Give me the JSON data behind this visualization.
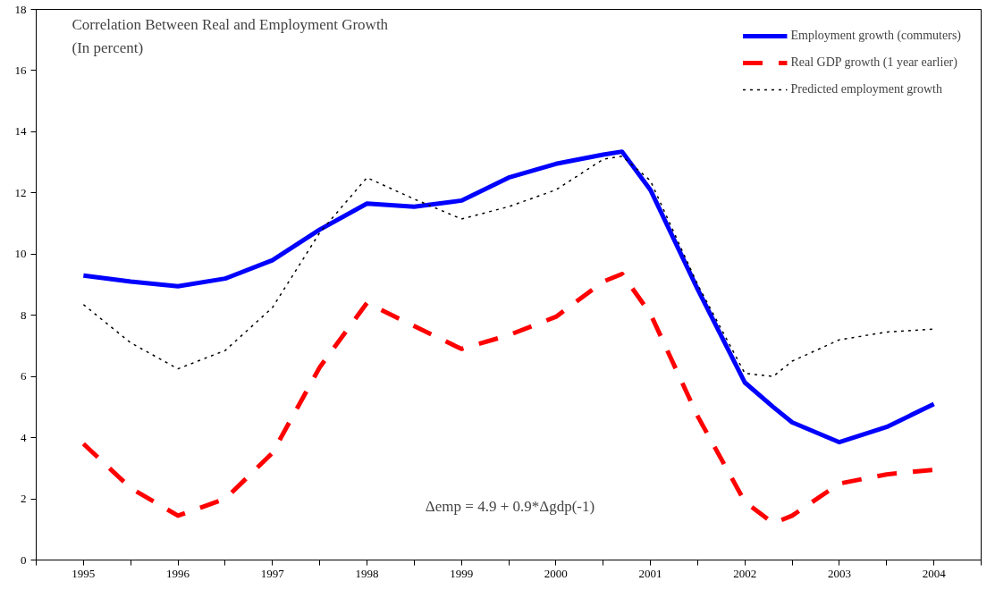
{
  "chart_data": {
    "type": "line",
    "title": "Correlation Between Real and Employment Growth",
    "subtitle": "(In percent)",
    "x": [
      1995.0,
      1995.5,
      1996.0,
      1996.5,
      1997.0,
      1997.5,
      1998.0,
      1998.5,
      1999.0,
      1999.5,
      2000.0,
      2000.5,
      2000.7,
      2001.0,
      2001.5,
      2002.0,
      2002.3,
      2002.5,
      2003.0,
      2003.5,
      2004.0
    ],
    "series": [
      {
        "name": "Employment growth (commuters)",
        "color": "#0000ff",
        "line_style": "solid",
        "values": [
          9.3,
          9.1,
          8.95,
          9.2,
          9.8,
          10.8,
          11.65,
          11.55,
          11.75,
          12.5,
          12.95,
          13.25,
          13.35,
          12.1,
          8.85,
          5.8,
          5.0,
          4.5,
          3.85,
          4.35,
          5.1
        ]
      },
      {
        "name": "Real GDP growth (1 year earlier)",
        "color": "#ff0000",
        "line_style": "dashed",
        "values": [
          3.8,
          2.35,
          1.45,
          2.0,
          3.5,
          6.3,
          8.4,
          7.65,
          6.9,
          7.35,
          7.95,
          9.1,
          9.35,
          8.05,
          4.7,
          1.9,
          1.2,
          1.45,
          2.5,
          2.8,
          2.95
        ]
      },
      {
        "name": "Predicted employment growth",
        "color": "#000000",
        "line_style": "dotted",
        "values": [
          8.35,
          7.1,
          6.25,
          6.85,
          8.25,
          10.7,
          12.5,
          11.8,
          11.15,
          11.55,
          12.1,
          13.1,
          13.2,
          12.4,
          9.0,
          6.1,
          6.0,
          6.5,
          7.2,
          7.45,
          7.55
        ]
      }
    ],
    "xlim": [
      1994.5,
      2004.5
    ],
    "xticks": [
      {
        "value": 1994.5,
        "label": null
      },
      {
        "value": 1995,
        "label": "1995"
      },
      {
        "value": 1995.5,
        "label": null
      },
      {
        "value": 1996,
        "label": "1996"
      },
      {
        "value": 1996.5,
        "label": null
      },
      {
        "value": 1997,
        "label": "1997"
      },
      {
        "value": 1997.5,
        "label": null
      },
      {
        "value": 1998,
        "label": "1998"
      },
      {
        "value": 1998.5,
        "label": null
      },
      {
        "value": 1999,
        "label": "1999"
      },
      {
        "value": 1999.5,
        "label": null
      },
      {
        "value": 2000,
        "label": "2000"
      },
      {
        "value": 2000.5,
        "label": null
      },
      {
        "value": 2001,
        "label": "2001"
      },
      {
        "value": 2001.5,
        "label": null
      },
      {
        "value": 2002,
        "label": "2002"
      },
      {
        "value": 2002.5,
        "label": null
      },
      {
        "value": 2003,
        "label": "2003"
      },
      {
        "value": 2003.5,
        "label": null
      },
      {
        "value": 2004,
        "label": "2004"
      },
      {
        "value": 2004.5,
        "label": null
      }
    ],
    "ylim": [
      0,
      18
    ],
    "yticks": [
      0,
      2,
      4,
      6,
      8,
      10,
      12,
      14,
      16,
      18
    ],
    "annotations": [
      "Δemp = 4.9 + 0.9*Δgdp(-1)"
    ],
    "grid": false,
    "legend": "top right",
    "marker": "none"
  }
}
